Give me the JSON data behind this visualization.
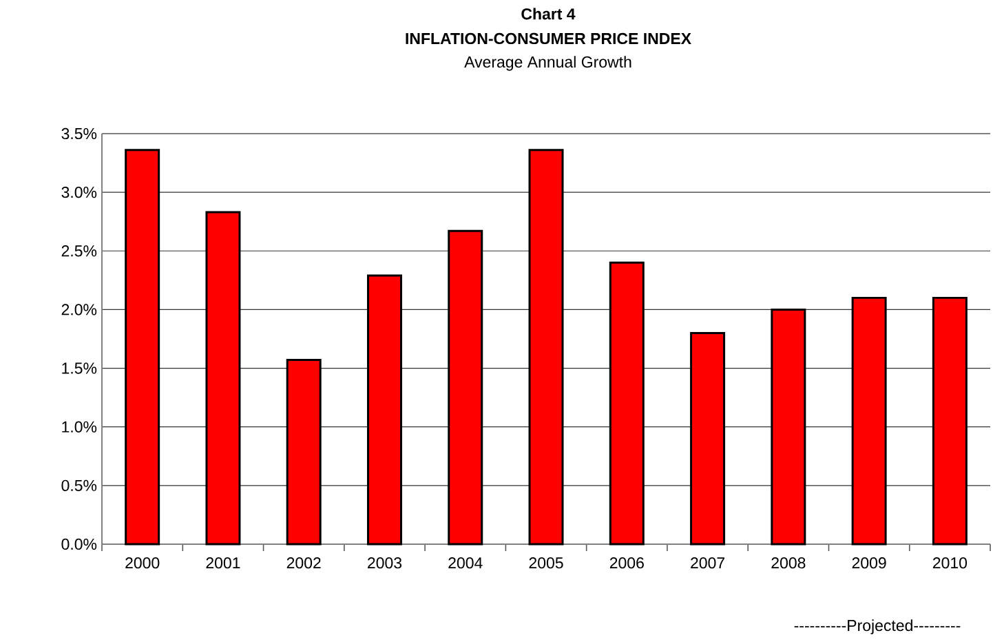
{
  "chart_data": {
    "type": "bar",
    "title": "Chart 4",
    "subtitle": "INFLATION-CONSUMER PRICE INDEX",
    "annotations": [
      "Average Annual Growth",
      "----------Projected---------"
    ],
    "categories": [
      "2000",
      "2001",
      "2002",
      "2003",
      "2004",
      "2005",
      "2006",
      "2007",
      "2008",
      "2009",
      "2010"
    ],
    "values": [
      3.36,
      2.83,
      1.57,
      2.29,
      2.67,
      3.36,
      2.4,
      1.8,
      2.0,
      2.1,
      2.1
    ],
    "color": "#ff0000",
    "ylim": [
      0,
      3.5
    ],
    "yticks": [
      {
        "value": 0,
        "label": "0.0%"
      },
      {
        "value": 0.5,
        "label": "0.5%"
      },
      {
        "value": 1,
        "label": "1.0%"
      },
      {
        "value": 1.5,
        "label": "1.5%"
      },
      {
        "value": 2,
        "label": "2.0%"
      },
      {
        "value": 2.5,
        "label": "2.5%"
      },
      {
        "value": 3,
        "label": "3.0%"
      },
      {
        "value": 3.5,
        "label": "3.5%"
      }
    ],
    "grid": "y"
  }
}
